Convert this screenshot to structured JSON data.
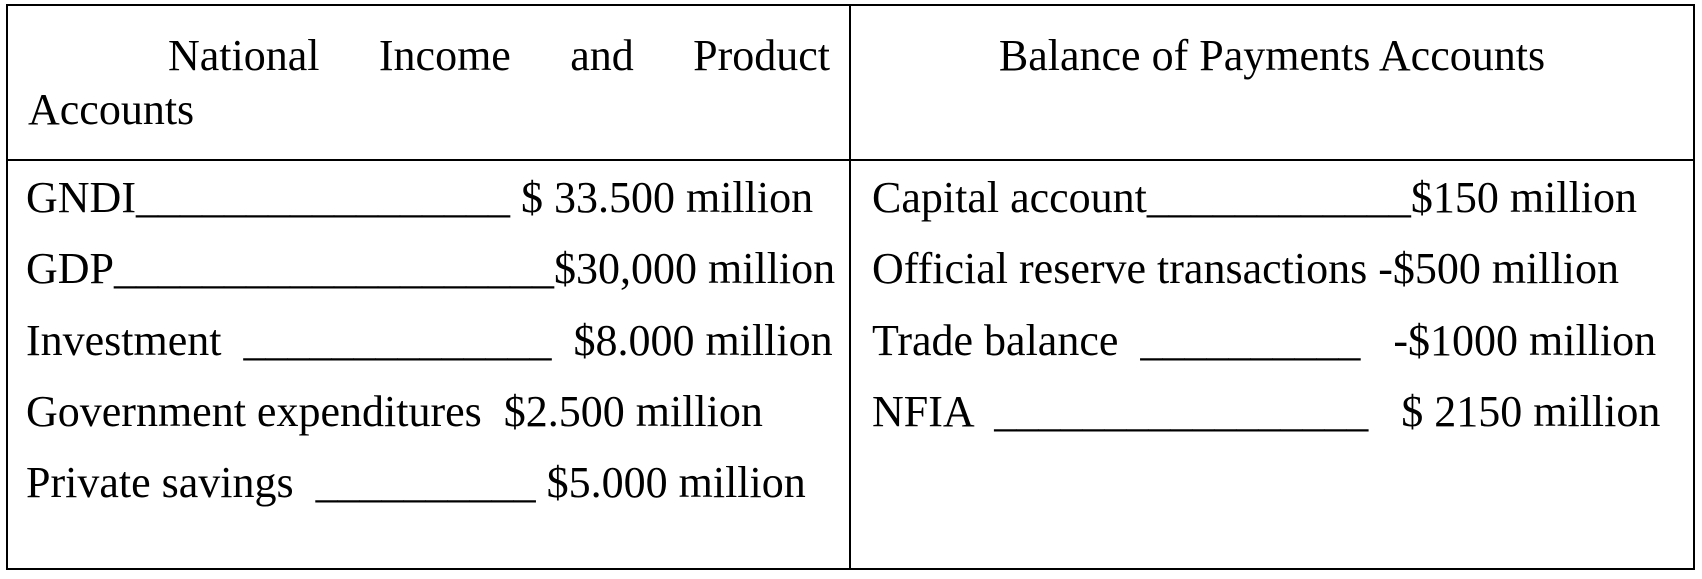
{
  "headers": {
    "left_line1": "National Income and Product",
    "left_line2": "Accounts",
    "right": "Balance of Payments Accounts"
  },
  "left_rows": [
    "GNDI_________________ $ 33.500 million",
    "GDP____________________$30,000 million",
    "Investment  ______________  $8.000 million",
    "Government expenditures  $2.500 million",
    "Private savings  __________ $5.000 million"
  ],
  "right_rows": [
    "Capital account____________$150 million",
    "Official reserve transactions -$500 million",
    "Trade balance  __________   -$1000 million",
    "NFIA  _________________   $ 2150 million"
  ]
}
